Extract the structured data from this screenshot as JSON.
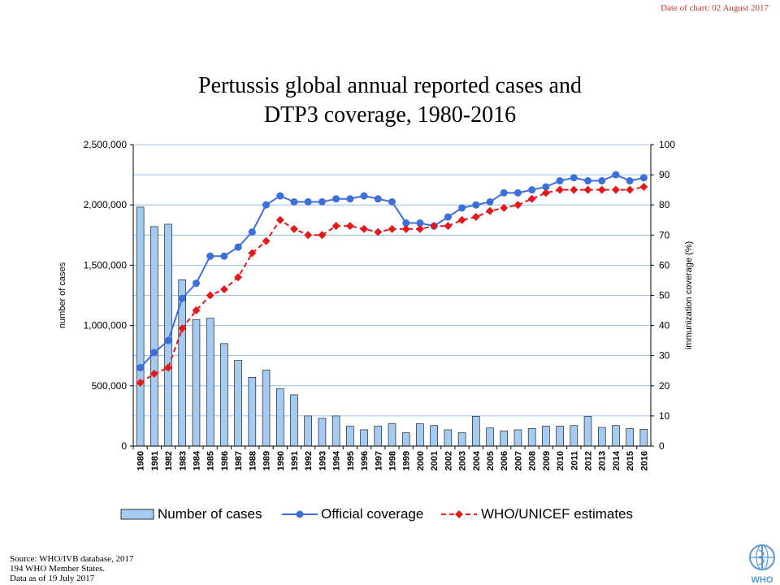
{
  "header": {
    "date_note": "Date of chart:  02 August 2017",
    "title_line1": "Pertussis global annual reported cases and",
    "title_line2": "DTP3 coverage, 1980-2016"
  },
  "chart_data": {
    "type": "bar",
    "categories": [
      "1980",
      "1981",
      "1982",
      "1983",
      "1984",
      "1985",
      "1986",
      "1987",
      "1988",
      "1989",
      "1990",
      "1991",
      "1992",
      "1993",
      "1994",
      "1995",
      "1996",
      "1997",
      "1998",
      "1999",
      "2000",
      "2001",
      "2002",
      "2003",
      "2004",
      "2005",
      "2006",
      "2007",
      "2008",
      "2009",
      "2010",
      "2011",
      "2012",
      "2013",
      "2014",
      "2015",
      "2016"
    ],
    "series": [
      {
        "name": "Number of cases",
        "type": "bar",
        "axis": "left",
        "color": "#a6cbf0",
        "values": [
          1982000,
          1820000,
          1840000,
          1380000,
          1050000,
          1060000,
          850000,
          710000,
          570000,
          630000,
          475000,
          425000,
          250000,
          230000,
          250000,
          165000,
          135000,
          165000,
          185000,
          110000,
          185000,
          170000,
          135000,
          110000,
          245000,
          150000,
          125000,
          135000,
          145000,
          165000,
          165000,
          170000,
          245000,
          155000,
          170000,
          145000,
          140000
        ]
      },
      {
        "name": "Official coverage",
        "type": "line",
        "axis": "right",
        "color": "#3d6fdb",
        "values": [
          26,
          31,
          35,
          49,
          54,
          63,
          63,
          66,
          71,
          80,
          83,
          81,
          81,
          81,
          82,
          82,
          83,
          82,
          81,
          74,
          74,
          73,
          76,
          79,
          80,
          81,
          84,
          84,
          85,
          86,
          88,
          89,
          88,
          88,
          90,
          88,
          89
        ]
      },
      {
        "name": "WHO/UNICEF estimates",
        "type": "line",
        "axis": "right",
        "color": "#e31a1c",
        "values": [
          21,
          24,
          26,
          39,
          45,
          50,
          52,
          56,
          64,
          68,
          75,
          72,
          70,
          70,
          73,
          73,
          72,
          71,
          72,
          72,
          72,
          73,
          73,
          75,
          76,
          78,
          79,
          80,
          82,
          84,
          85,
          85,
          85,
          85,
          85,
          85,
          86
        ]
      }
    ],
    "ylabel": "number of cases",
    "y2label": "immunization coverage (%)",
    "ylim": [
      0,
      2500000
    ],
    "y2lim": [
      0,
      100
    ],
    "yticks": [
      "0",
      "500,000",
      "1,000,000",
      "1,500,000",
      "2,000,000",
      "2,500,000"
    ],
    "y2ticks": [
      "0",
      "10",
      "20",
      "30",
      "40",
      "50",
      "60",
      "70",
      "80",
      "90",
      "100"
    ],
    "grid": true,
    "legend": "bottom"
  },
  "footer": {
    "source_line1": "Source:  WHO/IVB database,  2017",
    "source_line2": "194 WHO Member States.",
    "source_line3": "Data as of 19 July 2017",
    "logo_text": "WHO"
  }
}
